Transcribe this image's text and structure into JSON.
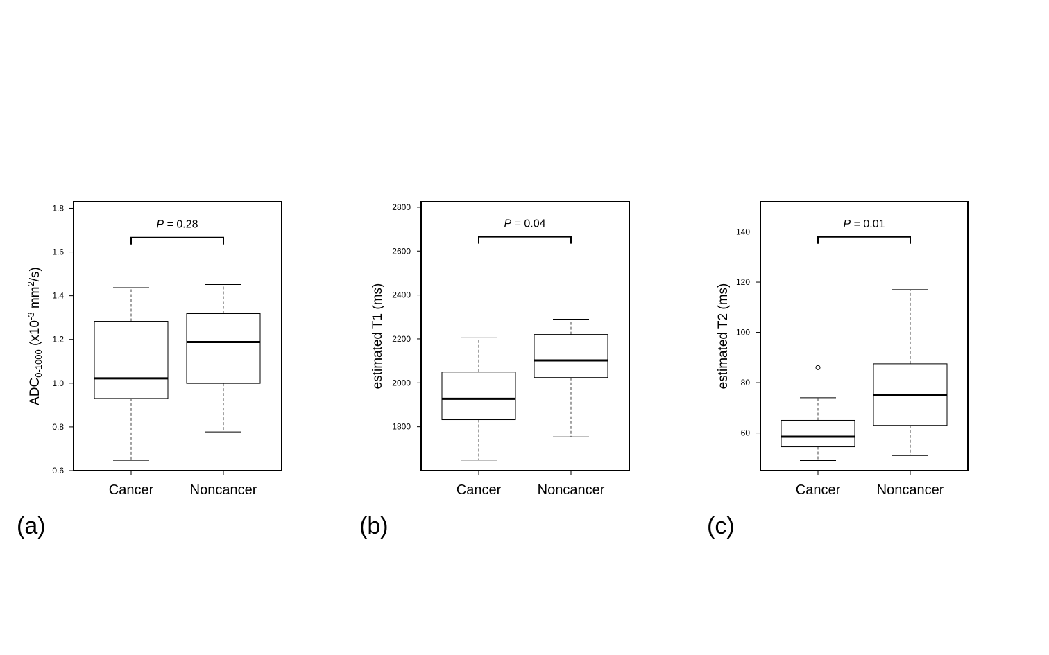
{
  "chart_data": [
    {
      "type": "boxplot",
      "panel_label": "(a)",
      "ylabel": {
        "main": "ADC",
        "sub": "0-1000",
        "rest1": " (x10",
        "sup": "-3",
        "rest2": " mm",
        "sup2": "2",
        "rest3": "/s)"
      },
      "ylim": [
        0.6,
        1.83
      ],
      "yticks": [
        0.6,
        0.8,
        1.0,
        1.2,
        1.4,
        1.6,
        1.8
      ],
      "ytick_labels": [
        "0.6",
        "0.8",
        "1.0",
        "1.2",
        "1.4",
        "1.6",
        "1.8"
      ],
      "categories": [
        "Cancer",
        "Noncancer"
      ],
      "boxes": [
        {
          "name": "Cancer",
          "whisker_low": 0.647,
          "q1": 0.93,
          "median": 1.022,
          "q3": 1.283,
          "whisker_high": 1.437,
          "outliers": []
        },
        {
          "name": "Noncancer",
          "whisker_low": 0.777,
          "q1": 0.999,
          "median": 1.188,
          "q3": 1.318,
          "whisker_high": 1.451,
          "outliers": []
        }
      ],
      "annotation": {
        "p_symbol": "P",
        "p_value": "= 0.28",
        "bracket_y": 1.666
      }
    },
    {
      "type": "boxplot",
      "panel_label": "(b)",
      "ylabel": {
        "main": "estimated T1 (ms)"
      },
      "ylim": [
        1600,
        2825
      ],
      "yticks": [
        1800,
        2000,
        2200,
        2400,
        2600,
        2800
      ],
      "ytick_labels": [
        "1800",
        "2000",
        "2200",
        "2400",
        "2600",
        "2800"
      ],
      "categories": [
        "Cancer",
        "Noncancer"
      ],
      "boxes": [
        {
          "name": "Cancer",
          "whisker_low": 1648,
          "q1": 1832,
          "median": 1927,
          "q3": 2049,
          "whisker_high": 2205,
          "outliers": []
        },
        {
          "name": "Noncancer",
          "whisker_low": 1754,
          "q1": 2024,
          "median": 2102,
          "q3": 2220,
          "whisker_high": 2290,
          "outliers": []
        }
      ],
      "annotation": {
        "p_symbol": "P",
        "p_value": "= 0.04",
        "bracket_y": 2665
      }
    },
    {
      "type": "boxplot",
      "panel_label": "(c)",
      "ylabel": {
        "main": "estimated T2 (ms)"
      },
      "ylim": [
        45,
        152
      ],
      "yticks": [
        60,
        80,
        100,
        120,
        140
      ],
      "ytick_labels": [
        "60",
        "80",
        "100",
        "120",
        "140"
      ],
      "categories": [
        "Cancer",
        "Noncancer"
      ],
      "boxes": [
        {
          "name": "Cancer",
          "whisker_low": 49,
          "q1": 54.5,
          "median": 58.5,
          "q3": 65,
          "whisker_high": 74,
          "outliers": [
            86
          ]
        },
        {
          "name": "Noncancer",
          "whisker_low": 51,
          "q1": 63,
          "median": 75,
          "q3": 87.5,
          "whisker_high": 117,
          "outliers": []
        }
      ],
      "annotation": {
        "p_symbol": "P",
        "p_value": "= 0.01",
        "bracket_y": 138
      }
    }
  ]
}
